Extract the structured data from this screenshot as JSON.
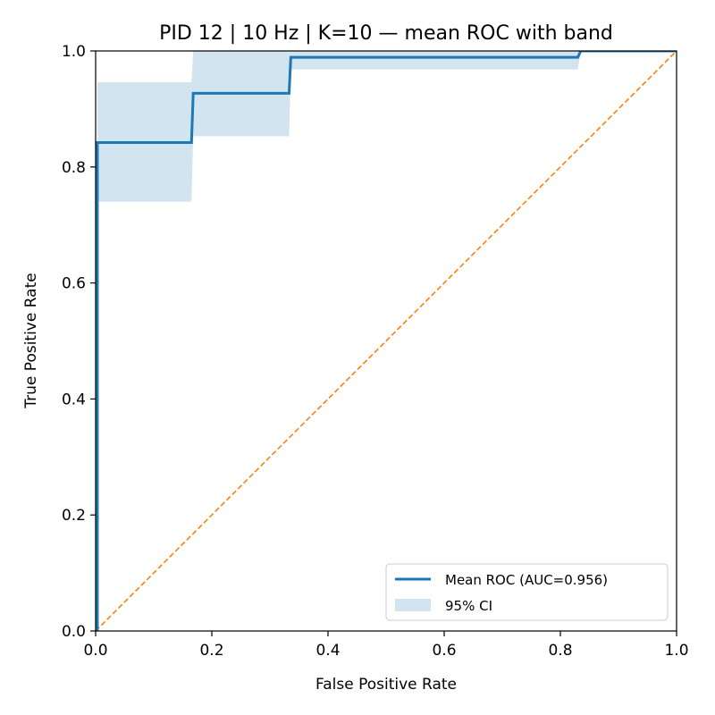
{
  "chart_data": {
    "type": "line",
    "title": "PID 12 | 10 Hz | K=10 — mean ROC with band",
    "xlabel": "False Positive Rate",
    "ylabel": "True Positive Rate",
    "xlim": [
      0.0,
      1.0
    ],
    "ylim": [
      0.0,
      1.0
    ],
    "x_ticks": [
      "0.0",
      "0.2",
      "0.4",
      "0.6",
      "0.8",
      "1.0"
    ],
    "y_ticks": [
      "0.0",
      "0.2",
      "0.4",
      "0.6",
      "0.8",
      "1.0"
    ],
    "grid": false,
    "legend_placement": "lower-right",
    "series": [
      {
        "name": "Mean ROC (AUC=0.956)",
        "kind": "line",
        "color": "#1f77b4",
        "x": [
          0.0,
          0.003,
          0.003,
          0.165,
          0.168,
          0.333,
          0.336,
          0.83,
          0.835,
          1.0
        ],
        "y": [
          0.0,
          0.0,
          0.842,
          0.842,
          0.927,
          0.927,
          0.989,
          0.989,
          1.0,
          1.0
        ]
      },
      {
        "name": "95% CI",
        "kind": "band",
        "color": "#1f77b4",
        "x": [
          0.003,
          0.165,
          0.168,
          0.333,
          0.336,
          0.83,
          0.835,
          1.0
        ],
        "lower": [
          0.74,
          0.74,
          0.853,
          0.853,
          0.968,
          0.968,
          1.0,
          1.0
        ],
        "upper": [
          0.946,
          0.946,
          1.0,
          1.0,
          1.0,
          1.0,
          1.0,
          1.0
        ]
      },
      {
        "kind": "reference",
        "color": "#ff7f0e",
        "x": [
          0.0,
          1.0
        ],
        "y": [
          0.0,
          1.0
        ]
      }
    ]
  }
}
